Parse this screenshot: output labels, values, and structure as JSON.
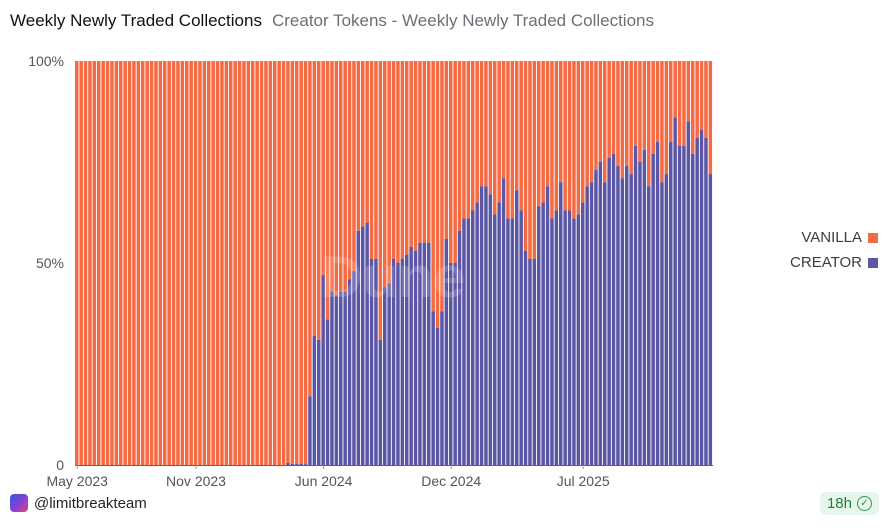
{
  "header": {
    "title": "Weekly Newly Traded Collections",
    "subtitle": "Creator Tokens - Weekly Newly Traded Collections"
  },
  "footer": {
    "author": "@limitbreakteam",
    "refresh_age": "18h"
  },
  "watermark": "Dune",
  "colors": {
    "vanilla": "#f36a43",
    "creator": "#5b57a6",
    "axis_text": "#555555"
  },
  "chart_data": {
    "type": "bar",
    "stacked": true,
    "normalized": true,
    "ylim": [
      0,
      100
    ],
    "y_ticks": [
      "0",
      "50%",
      "100%"
    ],
    "x_ticks": [
      "May 2023",
      "Nov 2023",
      "Jun 2024",
      "Dec 2024",
      "Jul 2025"
    ],
    "x_tick_positions": [
      0,
      27,
      56,
      85,
      115
    ],
    "legend": [
      "VANILLA",
      "CREATOR"
    ],
    "series": [
      {
        "name": "CREATOR",
        "values": [
          0,
          0,
          0,
          0,
          0,
          0,
          0,
          0,
          0,
          0,
          0,
          0,
          0,
          0,
          0,
          0,
          0,
          0,
          0,
          0,
          0,
          0,
          0,
          0,
          0,
          0,
          0,
          0,
          0,
          0,
          0,
          0,
          0,
          0,
          0,
          0,
          0,
          0,
          0,
          0,
          0,
          0,
          0,
          0,
          0,
          0,
          0,
          0,
          0.5,
          0.3,
          0.3,
          0.3,
          0.2,
          17,
          32,
          31,
          47,
          36,
          43,
          42,
          43,
          43,
          46,
          48,
          58,
          59,
          60,
          51,
          51,
          31,
          44,
          45,
          51,
          50,
          51,
          52,
          54,
          53,
          55,
          55,
          55,
          38,
          34,
          38,
          56,
          50,
          50,
          58,
          61,
          61,
          63,
          65,
          69,
          69,
          67,
          62,
          65,
          71,
          61,
          61,
          68,
          63,
          53,
          51,
          51,
          64,
          65,
          69,
          61,
          63,
          70,
          63,
          63,
          61,
          62,
          65,
          69,
          70,
          73,
          75,
          70,
          76,
          77,
          74,
          71,
          74,
          72,
          79,
          75,
          78,
          69,
          77,
          80,
          70,
          72,
          80,
          86,
          79,
          79,
          85,
          77,
          81,
          83,
          81,
          72
        ]
      },
      {
        "name": "VANILLA",
        "values": "remainder to 100%"
      }
    ]
  }
}
